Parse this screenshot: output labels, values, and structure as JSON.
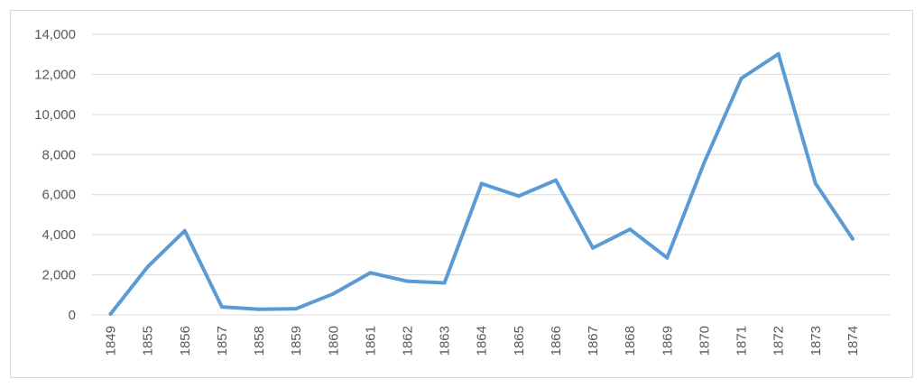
{
  "chart_data": {
    "type": "line",
    "title": "",
    "xlabel": "",
    "ylabel": "",
    "categories": [
      "1849",
      "1855",
      "1856",
      "1857",
      "1858",
      "1859",
      "1860",
      "1861",
      "1862",
      "1863",
      "1864",
      "1865",
      "1866",
      "1867",
      "1868",
      "1869",
      "1870",
      "1871",
      "1872",
      "1873",
      "1874"
    ],
    "series": [
      {
        "values": [
          50,
          2400,
          4200,
          400,
          280,
          310,
          1050,
          2100,
          1680,
          1600,
          6550,
          5930,
          6720,
          3340,
          4270,
          2850,
          7600,
          11800,
          13020,
          6560,
          3800
        ],
        "color": "#5b9bd5"
      }
    ],
    "ylim": [
      0,
      14000
    ],
    "yticks": [
      0,
      2000,
      4000,
      6000,
      8000,
      10000,
      12000,
      14000
    ],
    "ytick_labels": [
      "0",
      "2,000",
      "4,000",
      "6,000",
      "8,000",
      "10,000",
      "12,000",
      "14,000"
    ],
    "grid": true,
    "legend": false,
    "colors": {
      "line": "#5b9bd5",
      "grid": "#d9d9d9",
      "text": "#595959",
      "border": "#d9d9d9"
    }
  }
}
